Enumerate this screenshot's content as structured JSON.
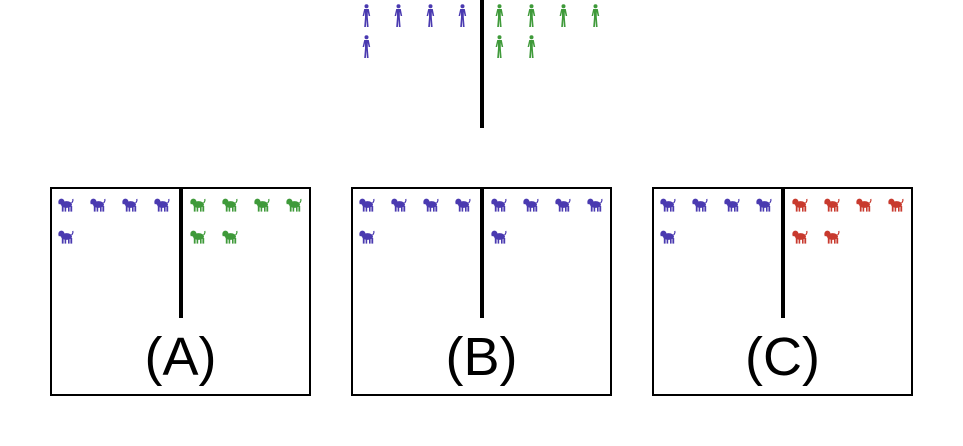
{
  "colors": {
    "blue": "#4a3ab0",
    "green": "#3f9a3a",
    "red": "#c83a2e"
  },
  "top": {
    "icon": "person-icon",
    "left_group": {
      "color_key": "blue",
      "count": 5
    },
    "right_group": {
      "color_key": "green",
      "count": 6
    }
  },
  "panels": [
    {
      "caption": "(A)",
      "icon": "dog-icon",
      "left_group": {
        "color_key": "blue",
        "count": 5
      },
      "right_group": {
        "color_key": "green",
        "count": 6
      }
    },
    {
      "caption": "(B)",
      "icon": "dog-icon",
      "left_group": {
        "color_key": "blue",
        "count": 5
      },
      "right_group": {
        "color_key": "blue",
        "count": 5
      }
    },
    {
      "caption": "(C)",
      "icon": "dog-icon",
      "left_group": {
        "color_key": "blue",
        "count": 5
      },
      "right_group": {
        "color_key": "red",
        "count": 6
      }
    }
  ]
}
